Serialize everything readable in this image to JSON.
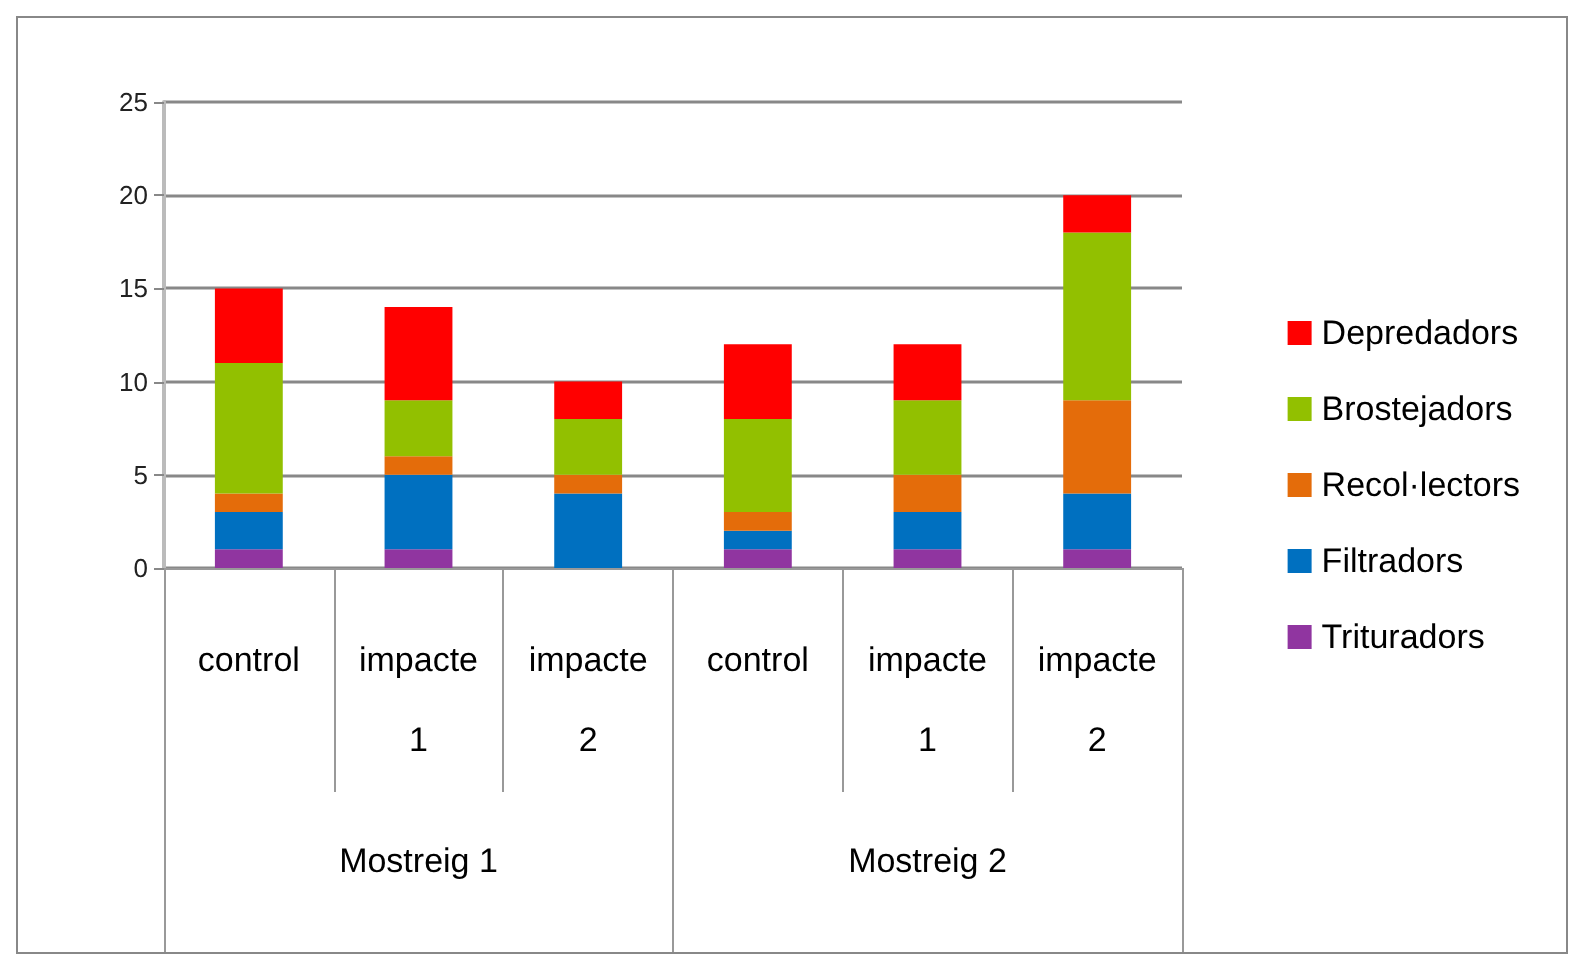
{
  "chart_data": {
    "type": "bar",
    "stacked": true,
    "categories": [
      "control",
      "impacte 1",
      "impacte 2",
      "control",
      "impacte 1",
      "impacte 2"
    ],
    "annotations": [
      "Mostreig 1",
      "Mostreig 2"
    ],
    "series": [
      {
        "name": "Trituradors",
        "color": "#9035a0",
        "values": [
          1,
          1,
          0,
          1,
          1,
          1
        ]
      },
      {
        "name": "Filtradors",
        "color": "#0070c0",
        "values": [
          2,
          4,
          4,
          1,
          2,
          3
        ]
      },
      {
        "name": "Recol·lectors",
        "color": "#e46c0a",
        "values": [
          1,
          1,
          1,
          1,
          2,
          5
        ]
      },
      {
        "name": "Brostejadors",
        "color": "#92c000",
        "values": [
          7,
          3,
          3,
          5,
          4,
          9
        ]
      },
      {
        "name": "Depredadors",
        "color": "#ff0000",
        "values": [
          4,
          5,
          2,
          4,
          3,
          2
        ]
      }
    ],
    "ylim": [
      0,
      25
    ],
    "yticks": [
      0,
      5,
      10,
      15,
      20,
      25
    ],
    "grid": true,
    "legend": "right"
  }
}
